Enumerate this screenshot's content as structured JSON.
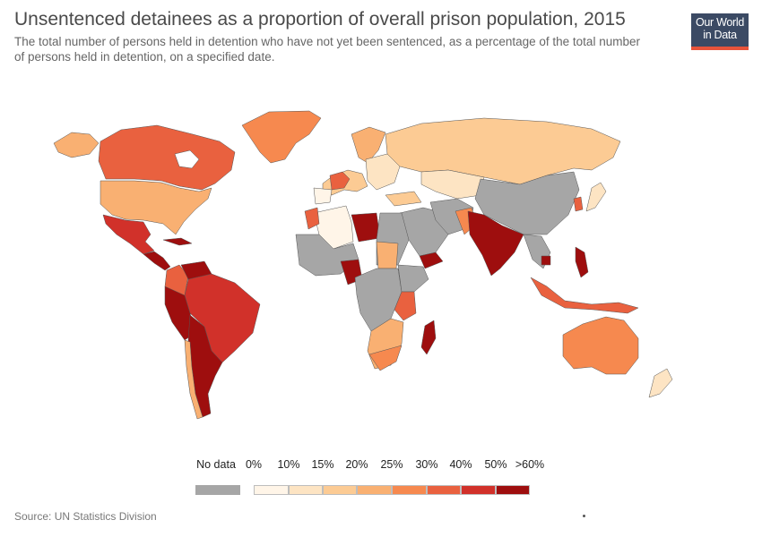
{
  "header": {
    "title": "Unsentenced detainees as a proportion of overall prison population, 2015",
    "subtitle": "The total number of persons held in detention who have not yet been sentenced, as a percentage of the total number of persons held in detention, on a specified date."
  },
  "logo": {
    "line1": "Our World",
    "line2": "in Data"
  },
  "legend": {
    "no_data_label": "No data",
    "no_data_color": "#a6a6a6",
    "bins": [
      {
        "label": "0%",
        "color": "#fff5e8"
      },
      {
        "label": "10%",
        "color": "#fde4c3"
      },
      {
        "label": "15%",
        "color": "#fccb94"
      },
      {
        "label": "20%",
        "color": "#f9b072"
      },
      {
        "label": "25%",
        "color": "#f6894f"
      },
      {
        "label": "30%",
        "color": "#e9613f"
      },
      {
        "label": "40%",
        "color": "#d1312a"
      },
      {
        "label": "50%",
        "color": "#9e0e0e"
      },
      {
        "label": ">60%",
        "color": ""
      }
    ]
  },
  "source": "Source: UN Statistics Division"
}
